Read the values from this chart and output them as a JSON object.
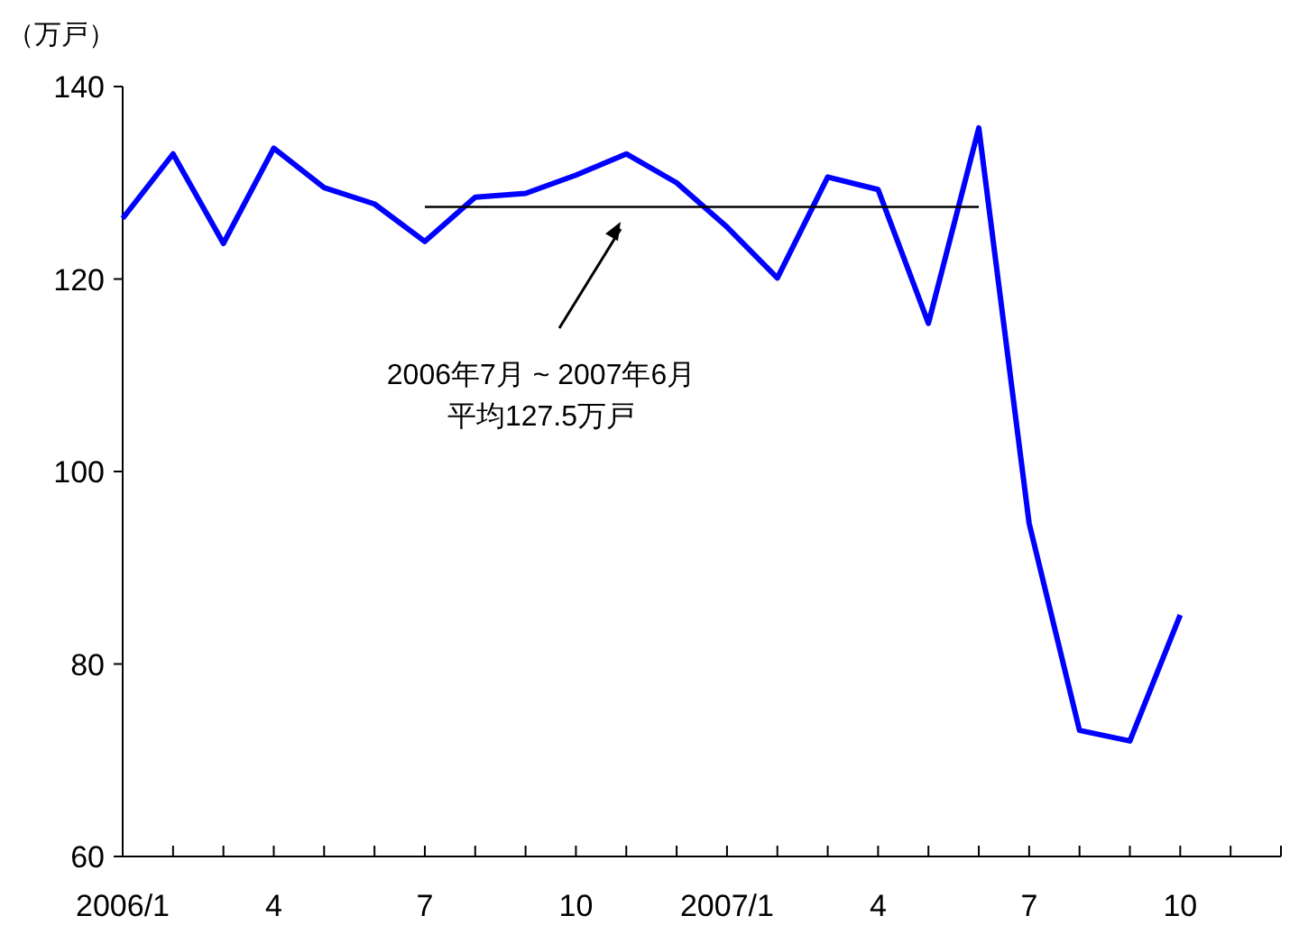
{
  "chart_data": {
    "type": "line",
    "ylabel": "（万戸）",
    "x": [
      "2006-01",
      "2006-02",
      "2006-03",
      "2006-04",
      "2006-05",
      "2006-06",
      "2006-07",
      "2006-08",
      "2006-09",
      "2006-10",
      "2006-11",
      "2006-12",
      "2007-01",
      "2007-02",
      "2007-03",
      "2007-04",
      "2007-05",
      "2007-06",
      "2007-07",
      "2007-08",
      "2007-09",
      "2007-10"
    ],
    "series": [
      {
        "color": "#0000ff",
        "values": [
          126.3,
          133.0,
          123.7,
          133.6,
          129.5,
          127.8,
          123.9,
          128.5,
          128.9,
          130.8,
          133.0,
          130.0,
          125.4,
          120.1,
          130.6,
          129.3,
          115.4,
          135.7,
          94.6,
          73.1,
          72.0,
          85.1
        ]
      },
      {
        "color": "#000000",
        "x": [
          "2006-07",
          "2007-06"
        ],
        "values": [
          127.5,
          127.5
        ]
      }
    ],
    "annotations": [
      "2006年7月 ~ 2007年6月",
      "平均127.5万戸"
    ],
    "xlim": [
      "2006-01",
      "2007-12"
    ],
    "xticks": [
      {
        "value": "2006-01",
        "label": "2006/1"
      },
      {
        "value": "2006-02",
        "label": null
      },
      {
        "value": "2006-03",
        "label": null
      },
      {
        "value": "2006-04",
        "label": "4"
      },
      {
        "value": "2006-05",
        "label": null
      },
      {
        "value": "2006-06",
        "label": null
      },
      {
        "value": "2006-07",
        "label": "7"
      },
      {
        "value": "2006-08",
        "label": null
      },
      {
        "value": "2006-09",
        "label": null
      },
      {
        "value": "2006-10",
        "label": "10"
      },
      {
        "value": "2006-11",
        "label": null
      },
      {
        "value": "2006-12",
        "label": null
      },
      {
        "value": "2007-01",
        "label": "2007/1"
      },
      {
        "value": "2007-02",
        "label": null
      },
      {
        "value": "2007-03",
        "label": null
      },
      {
        "value": "2007-04",
        "label": "4"
      },
      {
        "value": "2007-05",
        "label": null
      },
      {
        "value": "2007-06",
        "label": null
      },
      {
        "value": "2007-07",
        "label": "7"
      },
      {
        "value": "2007-08",
        "label": null
      },
      {
        "value": "2007-09",
        "label": null
      },
      {
        "value": "2007-10",
        "label": "10"
      },
      {
        "value": "2007-11",
        "label": null
      },
      {
        "value": "2007-12",
        "label": null
      }
    ],
    "ylim": [
      60,
      140
    ],
    "yticks": [
      60,
      80,
      100,
      120,
      140
    ],
    "grid": false,
    "marker": "none",
    "line_style": "solid"
  }
}
